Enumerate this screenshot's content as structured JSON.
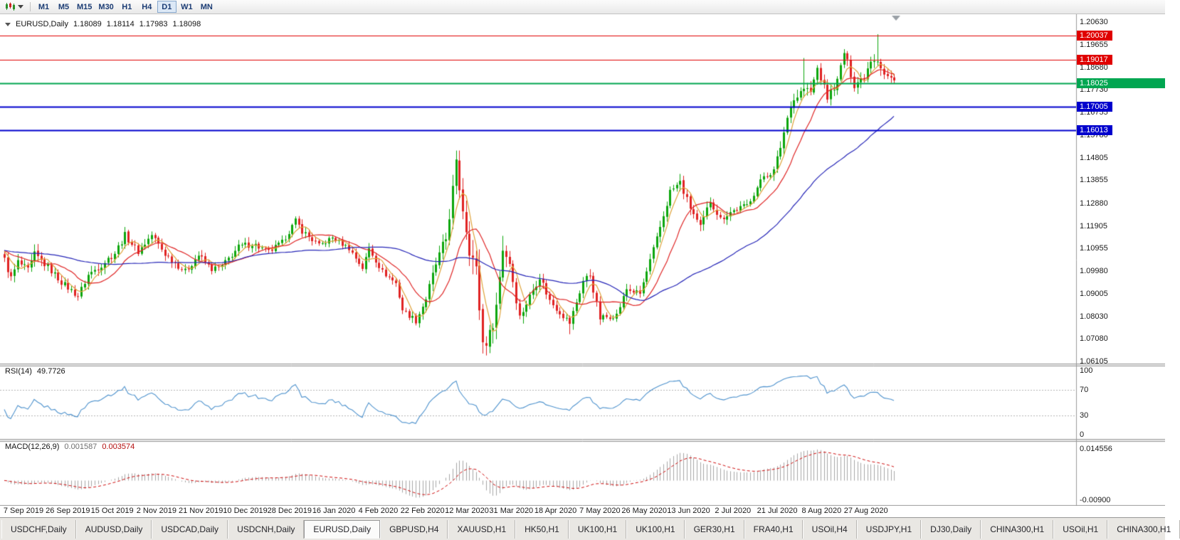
{
  "toolbar": {
    "timeframes": [
      "M1",
      "M5",
      "M15",
      "M30",
      "H1",
      "H4",
      "D1",
      "W1",
      "MN"
    ],
    "active_timeframe": "D1"
  },
  "chart": {
    "header": {
      "symbol": "EURUSD,Daily",
      "open": "1.18089",
      "high": "1.18114",
      "low": "1.17983",
      "close": "1.18098"
    },
    "price_axis": {
      "top_price": 1.2063,
      "bottom_price": 1.06105,
      "ticks": [
        "1.20630",
        "1.19655",
        "1.18680",
        "1.17730",
        "1.16755",
        "1.15780",
        "1.14805",
        "1.13855",
        "1.12880",
        "1.11905",
        "1.10955",
        "1.09980",
        "1.09005",
        "1.08030",
        "1.07080",
        "1.06105"
      ]
    },
    "hlines": [
      {
        "label": "1.20037",
        "price": 1.20037,
        "color": "#e00000",
        "width": 1,
        "extend_full": false
      },
      {
        "label": "1.19017",
        "price": 1.19017,
        "color": "#e00000",
        "width": 1,
        "extend_full": false
      },
      {
        "label": "1.18025",
        "price": 1.18025,
        "color": "#00a651",
        "width": 2,
        "extend_full": true
      },
      {
        "label": "1.17005",
        "price": 1.17005,
        "color": "#0000cd",
        "width": 2,
        "extend_full": false
      },
      {
        "label": "1.16013",
        "price": 1.16013,
        "color": "#0000cd",
        "width": 2,
        "extend_full": false
      }
    ],
    "date_axis": [
      "7 Sep 2019",
      "26 Sep 2019",
      "15 Oct 2019",
      "2 Nov 2019",
      "21 Nov 2019",
      "10 Dec 2019",
      "28 Dec 2019",
      "16 Jan 2020",
      "4 Feb 2020",
      "22 Feb 2020",
      "12 Mar 2020",
      "31 Mar 2020",
      "18 Apr 2020",
      "7 May 2020",
      "26 May 2020",
      "13 Jun 2020",
      "2 Jul 2020",
      "21 Jul 2020",
      "8 Aug 2020",
      "27 Aug 2020"
    ]
  },
  "rsi": {
    "label": "RSI(14)",
    "value": "49.7726",
    "color": "#4f93ce",
    "axis_labels": [
      "100",
      "70",
      "30",
      "0"
    ],
    "levels": [
      70,
      30
    ]
  },
  "macd": {
    "label": "MACD(12,26,9)",
    "value_main": "0.001587",
    "value_signal": "0.003574",
    "axis_max": "0.014556",
    "axis_min": "-0.00900",
    "histogram_color": "#a6a6a6",
    "signal_color": "#d01010"
  },
  "tabs": {
    "items": [
      "USDCHF,Daily",
      "AUDUSD,Daily",
      "USDCAD,Daily",
      "USDCNH,Daily",
      "EURUSD,Daily",
      "GBPUSD,H4",
      "XAUUSD,H1",
      "HK50,H1",
      "UK100,H1",
      "UK100,H1",
      "GER30,H1",
      "FRA40,H1",
      "USOil,H4",
      "USDJPY,H1",
      "DJ30,Daily",
      "CHINA300,H1",
      "USOil,H1",
      "CHINA300,H1"
    ],
    "active_index": 4
  },
  "chart_data": {
    "type": "candlestick",
    "symbol": "EURUSD",
    "timeframe": "Daily",
    "num_candles": 267,
    "price_range": [
      1.06105,
      1.2063
    ],
    "close_anchors": [
      [
        0,
        1.1045,
        0.0045
      ],
      [
        2,
        1.0965,
        0.005
      ],
      [
        4,
        1.1035,
        0.005
      ],
      [
        7,
        1.1,
        0.0045
      ],
      [
        9,
        1.1065,
        0.0055
      ],
      [
        13,
        1.1015,
        0.0045
      ],
      [
        17,
        1.095,
        0.004
      ],
      [
        22,
        1.089,
        0.004
      ],
      [
        25,
        1.098,
        0.0045
      ],
      [
        29,
        1.1025,
        0.0045
      ],
      [
        33,
        1.1075,
        0.0045
      ],
      [
        36,
        1.115,
        0.0045
      ],
      [
        40,
        1.108,
        0.004
      ],
      [
        44,
        1.1152,
        0.0045
      ],
      [
        48,
        1.107,
        0.004
      ],
      [
        54,
        1.0995,
        0.004
      ],
      [
        58,
        1.1065,
        0.004
      ],
      [
        62,
        1.1005,
        0.0035
      ],
      [
        65,
        1.1018,
        0.0035
      ],
      [
        70,
        1.11,
        0.004
      ],
      [
        74,
        1.1115,
        0.0045
      ],
      [
        79,
        1.1078,
        0.004
      ],
      [
        83,
        1.112,
        0.0035
      ],
      [
        87,
        1.1212,
        0.0035
      ],
      [
        89,
        1.117,
        0.004
      ],
      [
        94,
        1.1105,
        0.0035
      ],
      [
        98,
        1.114,
        0.0035
      ],
      [
        103,
        1.1095,
        0.003
      ],
      [
        107,
        1.101,
        0.003
      ],
      [
        109,
        1.1093,
        0.004
      ],
      [
        113,
        1.0995,
        0.0035
      ],
      [
        117,
        1.0945,
        0.003
      ],
      [
        119,
        1.0832,
        0.0035
      ],
      [
        123,
        1.0785,
        0.004
      ],
      [
        126,
        1.088,
        0.005
      ],
      [
        129,
        1.1027,
        0.006
      ],
      [
        132,
        1.1135,
        0.008
      ],
      [
        135,
        1.1445,
        0.011
      ],
      [
        137,
        1.127,
        0.012
      ],
      [
        139,
        1.1105,
        0.013
      ],
      [
        141,
        1.0995,
        0.012
      ],
      [
        143,
        1.069,
        0.012
      ],
      [
        145,
        1.072,
        0.01
      ],
      [
        147,
        1.085,
        0.01
      ],
      [
        149,
        1.1096,
        0.009
      ],
      [
        151,
        1.1035,
        0.007
      ],
      [
        154,
        1.08,
        0.006
      ],
      [
        157,
        1.089,
        0.005
      ],
      [
        160,
        1.0975,
        0.005
      ],
      [
        163,
        1.087,
        0.0045
      ],
      [
        169,
        1.0775,
        0.004
      ],
      [
        173,
        1.0955,
        0.006
      ],
      [
        175,
        1.098,
        0.005
      ],
      [
        178,
        1.0795,
        0.0045
      ],
      [
        183,
        1.081,
        0.0035
      ],
      [
        186,
        1.092,
        0.004
      ],
      [
        190,
        1.09,
        0.0035
      ],
      [
        195,
        1.1134,
        0.0045
      ],
      [
        199,
        1.1337,
        0.005
      ],
      [
        202,
        1.1375,
        0.0055
      ],
      [
        204,
        1.13,
        0.005
      ],
      [
        208,
        1.118,
        0.005
      ],
      [
        211,
        1.13,
        0.0045
      ],
      [
        214,
        1.122,
        0.004
      ],
      [
        217,
        1.125,
        0.004
      ],
      [
        222,
        1.128,
        0.0035
      ],
      [
        227,
        1.1405,
        0.004
      ],
      [
        230,
        1.1425,
        0.0045
      ],
      [
        232,
        1.153,
        0.005
      ],
      [
        235,
        1.1715,
        0.0055
      ],
      [
        239,
        1.1778,
        0.0065
      ],
      [
        241,
        1.1762,
        0.0055
      ],
      [
        243,
        1.1865,
        0.005
      ],
      [
        246,
        1.174,
        0.005
      ],
      [
        249,
        1.181,
        0.0045
      ],
      [
        251,
        1.1933,
        0.005
      ],
      [
        254,
        1.1796,
        0.0055
      ],
      [
        257,
        1.183,
        0.0045
      ],
      [
        259,
        1.1905,
        0.005
      ],
      [
        261,
        1.1911,
        0.0075
      ],
      [
        263,
        1.1838,
        0.0055
      ],
      [
        266,
        1.181,
        0.004
      ]
    ],
    "wick_extremes": {
      "highs": [
        [
          135,
          1.1495
        ],
        [
          149,
          1.1148
        ],
        [
          239,
          1.1909
        ],
        [
          261,
          1.2011
        ]
      ],
      "lows": [
        [
          123,
          1.0777
        ],
        [
          144,
          1.0636
        ],
        [
          169,
          1.0727
        ],
        [
          178,
          1.0767
        ]
      ]
    },
    "moving_averages": [
      {
        "period": 5,
        "color": "#dfa33a"
      },
      {
        "period": 13,
        "color": "#e02626"
      },
      {
        "period": 50,
        "color": "#2626b8"
      }
    ],
    "candle_colors": {
      "up": "#0da60d",
      "down": "#e02222"
    },
    "indicators": [
      {
        "name": "RSI",
        "period": 14,
        "last_value": 49.7726
      },
      {
        "name": "MACD",
        "fast_ema": 12,
        "slow_ema": 26,
        "signal": 9,
        "last_main": 0.001587,
        "last_signal": 0.003574
      }
    ]
  }
}
